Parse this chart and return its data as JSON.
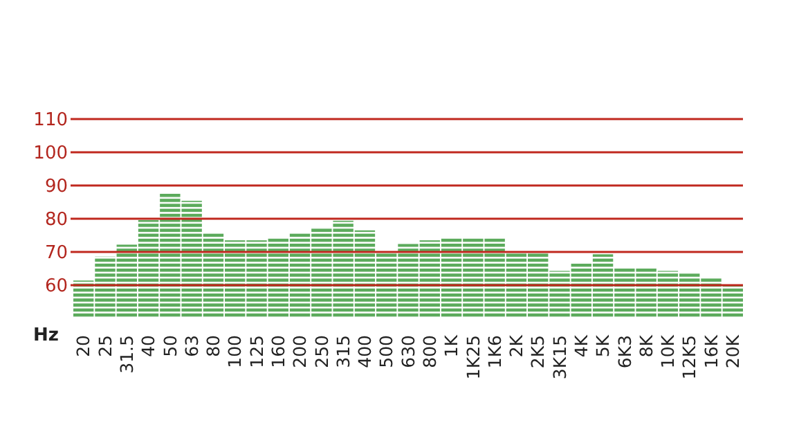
{
  "chart_data": {
    "type": "bar",
    "xlabel": "Hz",
    "categories": [
      "20",
      "25",
      "31.5",
      "40",
      "50",
      "63",
      "80",
      "100",
      "125",
      "160",
      "200",
      "250",
      "315",
      "400",
      "500",
      "630",
      "800",
      "1K",
      "1K25",
      "1K6",
      "2K",
      "2K5",
      "3K15",
      "4K",
      "5K",
      "6K3",
      "8K",
      "10K",
      "12K5",
      "16K",
      "20K"
    ],
    "values": [
      61.4,
      68.6,
      72.2,
      79.6,
      87.5,
      85.4,
      75.6,
      73.5,
      73.5,
      74.4,
      75.6,
      77.5,
      79.4,
      76.5,
      70,
      72.4,
      73.5,
      74.4,
      74.4,
      74.4,
      69.6,
      69.6,
      64.3,
      66.5,
      69.3,
      65.4,
      65.4,
      64.3,
      63.5,
      62.4,
      60
    ],
    "color": "#5cab5c",
    "ylim": [
      50,
      110
    ],
    "yticks": [
      60,
      70,
      80,
      90,
      100,
      110
    ],
    "grid": "y"
  }
}
